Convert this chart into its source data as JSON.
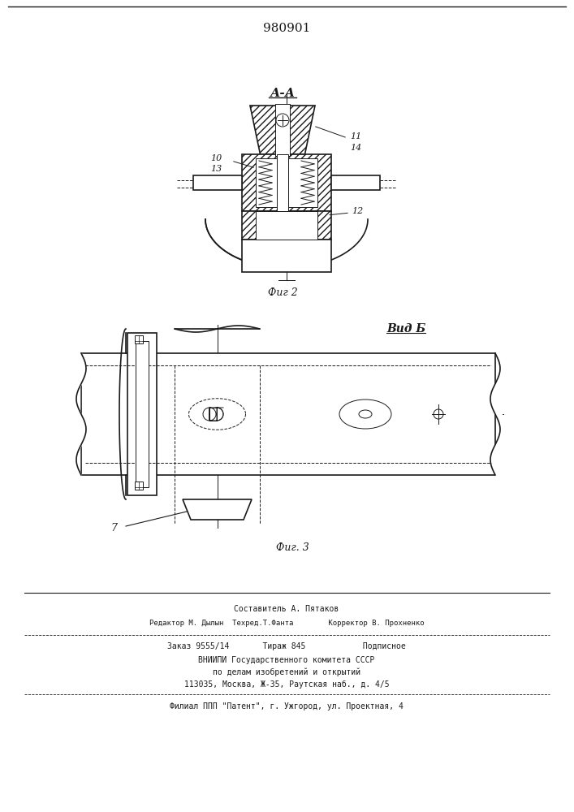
{
  "patent_number": "980901",
  "fig2_caption": "Фиг 2",
  "fig3_caption": "Фиг. 3",
  "vid_b_label": "Вид Б",
  "aa_label": "А-А",
  "footer_lines": [
    "Составитель А. Пятаков",
    "Редактор М. Дылын  Техред.Т.Фанта        Корректор В. Прохненко",
    "Заказ 9555/14       Тираж 845            Подписное",
    "ВНИИПИ Государственного комитета СССР",
    "по делам изобретений и открытий",
    "113035, Москва, Ж-35, Раутская наб., д. 4/5",
    "Филиал ППП \"Патент\", г. Ужгород, ул. Проектная, 4"
  ],
  "line_color": "#1a1a1a"
}
